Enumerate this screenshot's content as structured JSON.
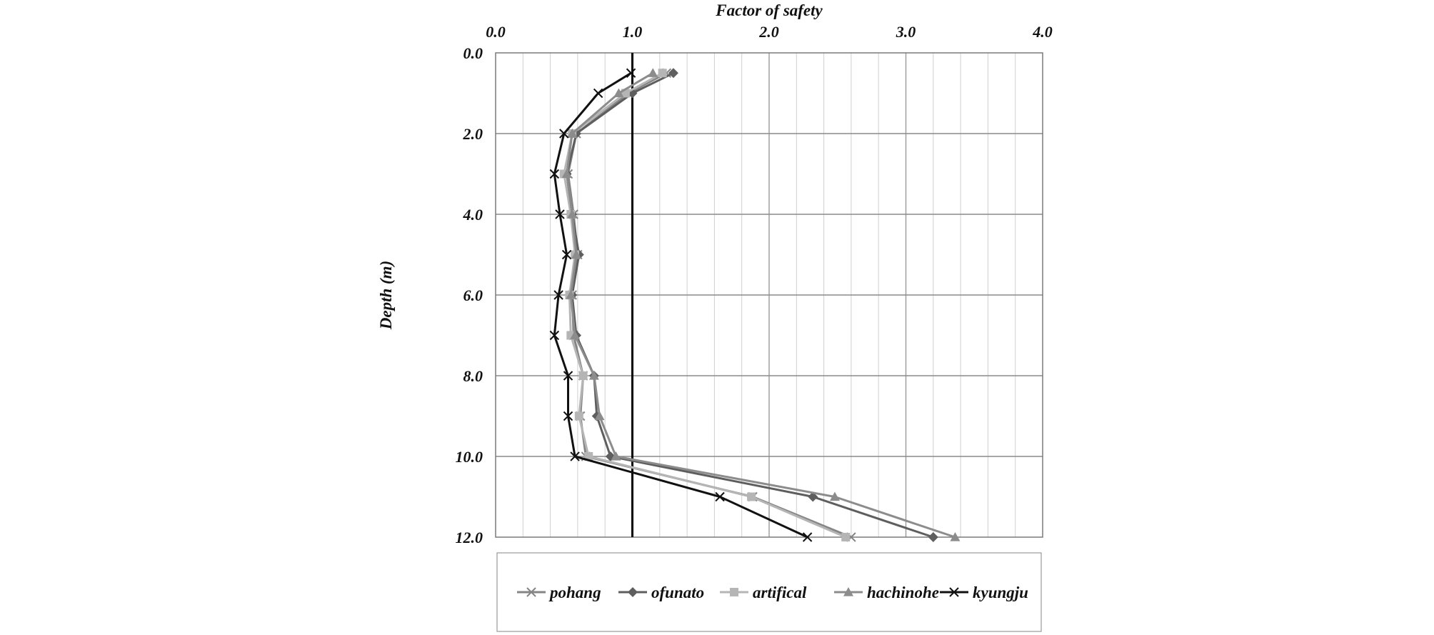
{
  "chart_data": {
    "type": "line",
    "title": "",
    "xlabel": "Factor of safety",
    "ylabel": "Depth (m)",
    "xlim": [
      0,
      4
    ],
    "ylim": [
      0,
      12
    ],
    "y_inverted": true,
    "x_axis_position": "top",
    "grid": true,
    "legend_position": "bottom",
    "xticks": [
      "0.0",
      "1.0",
      "2.0",
      "3.0",
      "4.0"
    ],
    "yticks": [
      "0.0",
      "2.0",
      "4.0",
      "6.0",
      "8.0",
      "10.0",
      "12.0"
    ],
    "depth": [
      0.5,
      1,
      2,
      3,
      4,
      5,
      6,
      7,
      8,
      9,
      10,
      11,
      12
    ],
    "reference_line": {
      "x": 1.0,
      "color": "#000000"
    },
    "series": [
      {
        "name": "pohang",
        "marker": "x",
        "color": "#858585",
        "x": [
          1.25,
          0.97,
          0.59,
          0.53,
          0.57,
          0.6,
          0.56,
          0.57,
          0.64,
          0.62,
          0.66,
          1.88,
          2.6
        ]
      },
      {
        "name": "ofunato",
        "marker": "diamond",
        "color": "#5e5e5e",
        "x": [
          1.3,
          1.0,
          0.59,
          0.52,
          0.56,
          0.61,
          0.56,
          0.59,
          0.72,
          0.74,
          0.84,
          2.32,
          3.2
        ]
      },
      {
        "name": "artifical",
        "marker": "square",
        "color": "#b5b5b5",
        "x": [
          1.22,
          0.95,
          0.56,
          0.5,
          0.55,
          0.58,
          0.54,
          0.55,
          0.64,
          0.61,
          0.68,
          1.87,
          2.56
        ]
      },
      {
        "name": "hachinohe",
        "marker": "triangle",
        "color": "#8c8c8c",
        "x": [
          1.15,
          0.9,
          0.56,
          0.52,
          0.56,
          0.59,
          0.55,
          0.58,
          0.72,
          0.76,
          0.88,
          2.48,
          3.36
        ]
      },
      {
        "name": "kyungju",
        "marker": "x",
        "color": "#111111",
        "x": [
          0.99,
          0.75,
          0.5,
          0.43,
          0.47,
          0.52,
          0.46,
          0.43,
          0.53,
          0.53,
          0.58,
          1.64,
          2.28
        ]
      }
    ]
  }
}
